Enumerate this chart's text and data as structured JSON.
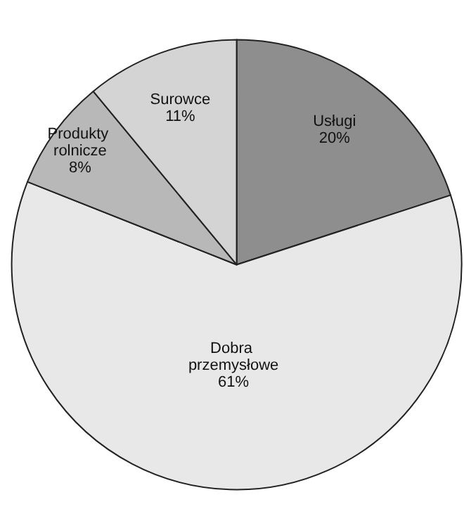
{
  "chart_data": {
    "type": "pie",
    "categories": [
      "Usługi",
      "Dobra przemysłowe",
      "Produkty rolnicze",
      "Surowce"
    ],
    "values": [
      20,
      61,
      8,
      11
    ],
    "value_labels": [
      "20%",
      "61%",
      "8%",
      "11%"
    ],
    "colors": [
      "#8e8e8e",
      "#e8e8e8",
      "#b8b8b8",
      "#d4d4d4"
    ],
    "legend": false
  }
}
